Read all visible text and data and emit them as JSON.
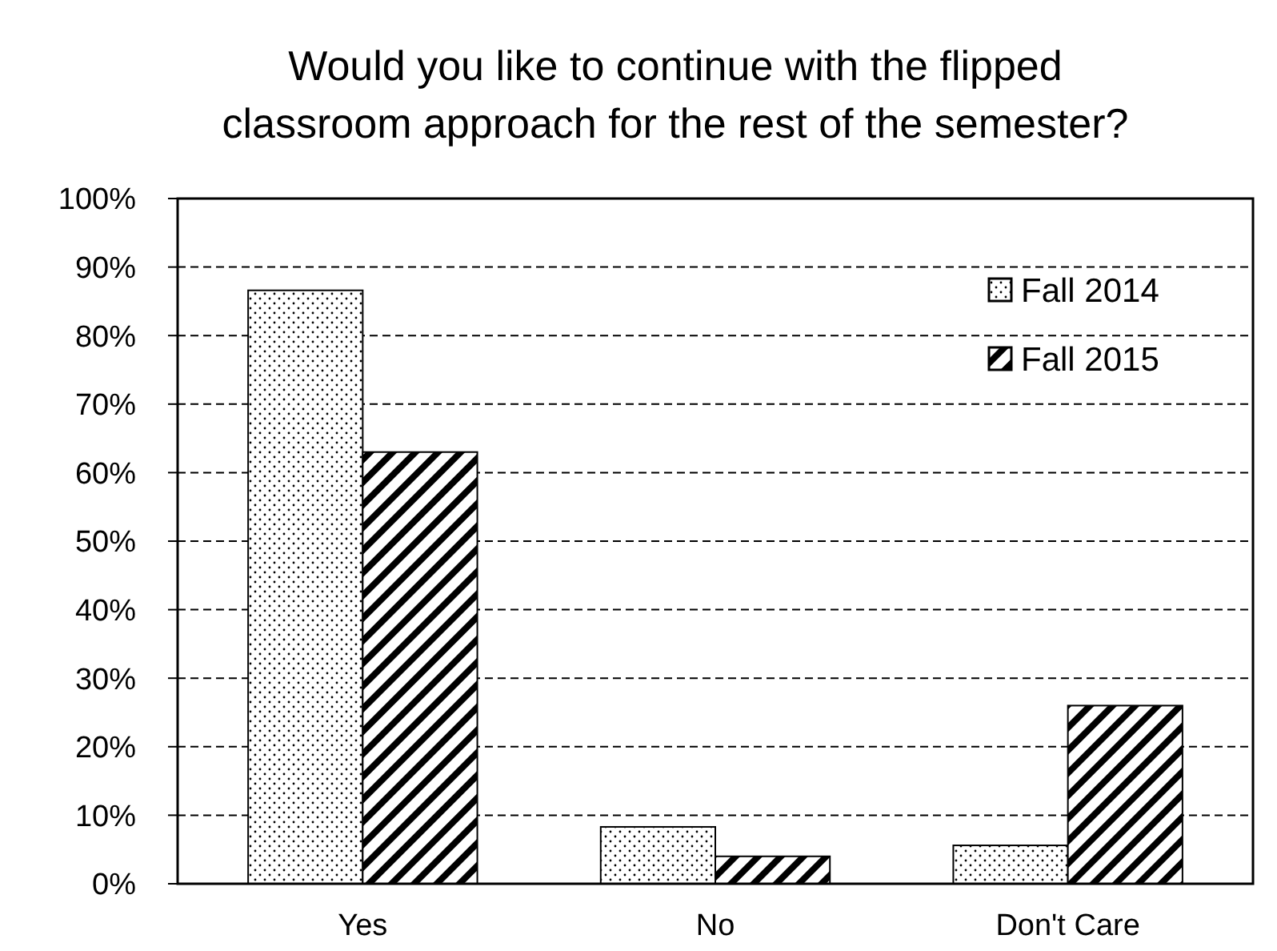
{
  "chart_data": {
    "type": "bar",
    "title": "Would you like to continue with the flipped classroom approach for the rest of the semester?",
    "categories": [
      "Yes",
      "No",
      "Don't Care"
    ],
    "series": [
      {
        "name": "Fall 2014",
        "color": "#000000",
        "values": [
          86.6,
          8.3,
          5.6
        ]
      },
      {
        "name": "Fall 2015",
        "color": "#000000",
        "values": [
          63,
          4,
          26
        ]
      }
    ],
    "ylim": [
      0,
      100
    ],
    "yticks": [
      {
        "value": 0,
        "label": "0%"
      },
      {
        "value": 10,
        "label": "10%"
      },
      {
        "value": 20,
        "label": "20%"
      },
      {
        "value": 30,
        "label": "30%"
      },
      {
        "value": 40,
        "label": "40%"
      },
      {
        "value": 50,
        "label": "50%"
      },
      {
        "value": 60,
        "label": "60%"
      },
      {
        "value": 70,
        "label": "70%"
      },
      {
        "value": 80,
        "label": "80%"
      },
      {
        "value": 90,
        "label": "90%"
      },
      {
        "value": 100,
        "label": "100%"
      }
    ],
    "grid": "y",
    "legend": "top right"
  }
}
